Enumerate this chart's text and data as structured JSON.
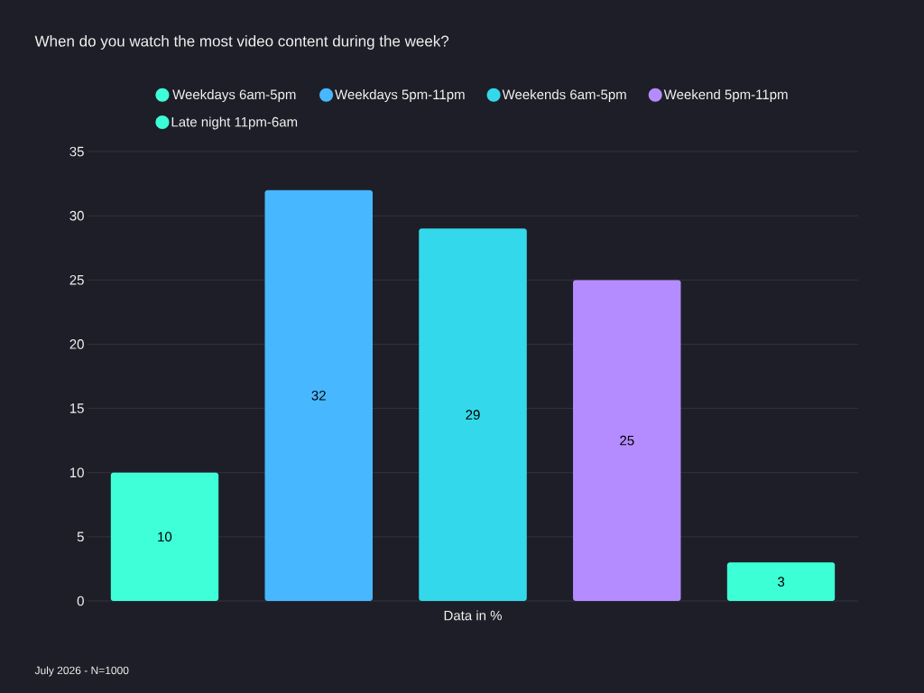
{
  "chart_data": {
    "type": "bar",
    "title": "When do you watch the most video content during the week?",
    "xlabel": "Data in %",
    "categories": [
      null,
      null,
      null,
      null,
      null
    ],
    "series": [
      {
        "name": "Weekdays 6am-5pm",
        "color": "#3effd8",
        "values": [
          10,
          null,
          null,
          null,
          null
        ]
      },
      {
        "name": "Weekdays 5pm-11pm",
        "color": "#47b8ff",
        "values": [
          null,
          32,
          null,
          null,
          null
        ]
      },
      {
        "name": "Weekends 6am-5pm",
        "color": "#33d9ea",
        "values": [
          null,
          null,
          29,
          null,
          null
        ]
      },
      {
        "name": "Weekend 5pm-11pm",
        "color": "#b48cff",
        "values": [
          null,
          null,
          null,
          25,
          null
        ]
      },
      {
        "name": "Late night 11pm-6am",
        "color": "#3dffd6",
        "values": [
          null,
          null,
          null,
          null,
          3
        ]
      }
    ],
    "ylim": [
      0,
      35
    ],
    "yticks": [
      0,
      5,
      10,
      15,
      20,
      25,
      30,
      35
    ],
    "grid": "y",
    "legend": "top",
    "data_labels": true,
    "annotations": [
      "July 2026 - N=1000"
    ]
  }
}
